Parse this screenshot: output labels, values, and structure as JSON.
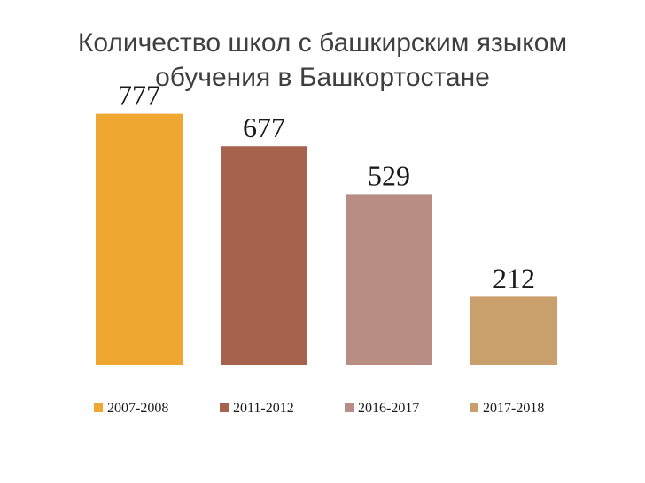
{
  "chart_data": {
    "type": "bar",
    "title": [
      "Количество школ с башкирским языком",
      "обучения в Башкортостане"
    ],
    "categories": [
      "2007-2008",
      "2011-2012",
      "2016-2017",
      "2017-2018"
    ],
    "values": [
      777,
      677,
      529,
      212
    ],
    "colors": [
      "#f0a731",
      "#a6624d",
      "#b88e84",
      "#c9a06c"
    ],
    "ylim": [
      0,
      1030
    ],
    "grid": false,
    "legend": "bottom",
    "data_labels": true
  }
}
